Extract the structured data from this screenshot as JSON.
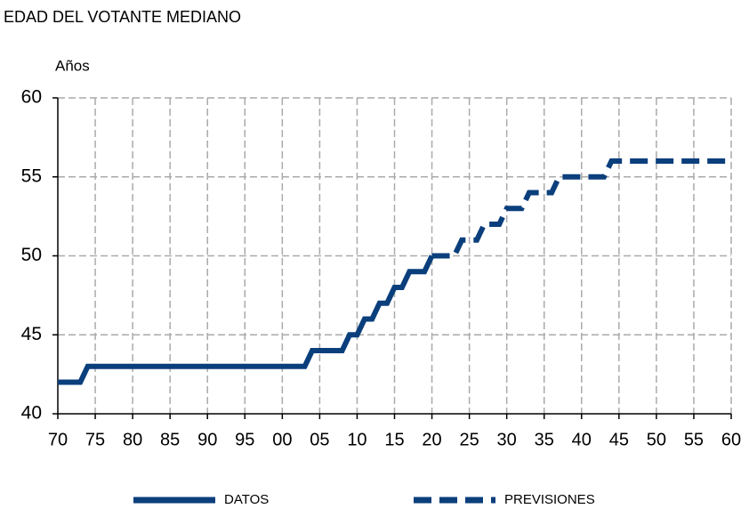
{
  "chart_data": {
    "type": "line",
    "title": "EDAD DEL VOTANTE MEDIANO",
    "y_label": "Años",
    "series": [
      {
        "name": "DATOS",
        "color": "#0b3f7c",
        "dash": false,
        "x": [
          1970,
          1973,
          1974,
          2003,
          2004,
          2008,
          2009,
          2010,
          2011,
          2012,
          2013,
          2014,
          2015,
          2016,
          2017,
          2019,
          2020
        ],
        "values": [
          42,
          42,
          43,
          43,
          44,
          44,
          45,
          45,
          46,
          46,
          47,
          47,
          48,
          48,
          49,
          49,
          50
        ]
      },
      {
        "name": "PREVISIONES",
        "color": "#0b3f7c",
        "dash": true,
        "x": [
          2020,
          2023,
          2024,
          2026,
          2027,
          2029,
          2030,
          2032,
          2033,
          2036,
          2037,
          2043,
          2044,
          2060
        ],
        "values": [
          50,
          50,
          51,
          51,
          52,
          52,
          53,
          53,
          54,
          54,
          55,
          55,
          56,
          56
        ]
      }
    ],
    "xlim": [
      1970,
      2060
    ],
    "xticks": [
      {
        "value": 1970,
        "label": "70"
      },
      {
        "value": 1975,
        "label": "75"
      },
      {
        "value": 1980,
        "label": "80"
      },
      {
        "value": 1985,
        "label": "85"
      },
      {
        "value": 1990,
        "label": "90"
      },
      {
        "value": 1995,
        "label": "95"
      },
      {
        "value": 2000,
        "label": "00"
      },
      {
        "value": 2005,
        "label": "05"
      },
      {
        "value": 2010,
        "label": "10"
      },
      {
        "value": 2015,
        "label": "15"
      },
      {
        "value": 2020,
        "label": "20"
      },
      {
        "value": 2025,
        "label": "25"
      },
      {
        "value": 2030,
        "label": "30"
      },
      {
        "value": 2035,
        "label": "35"
      },
      {
        "value": 2040,
        "label": "40"
      },
      {
        "value": 2045,
        "label": "45"
      },
      {
        "value": 2050,
        "label": "50"
      },
      {
        "value": 2055,
        "label": "55"
      },
      {
        "value": 2060,
        "label": "60"
      }
    ],
    "ylim": [
      40,
      60
    ],
    "yticks": [
      40,
      45,
      50,
      55,
      60
    ],
    "grid": true
  }
}
